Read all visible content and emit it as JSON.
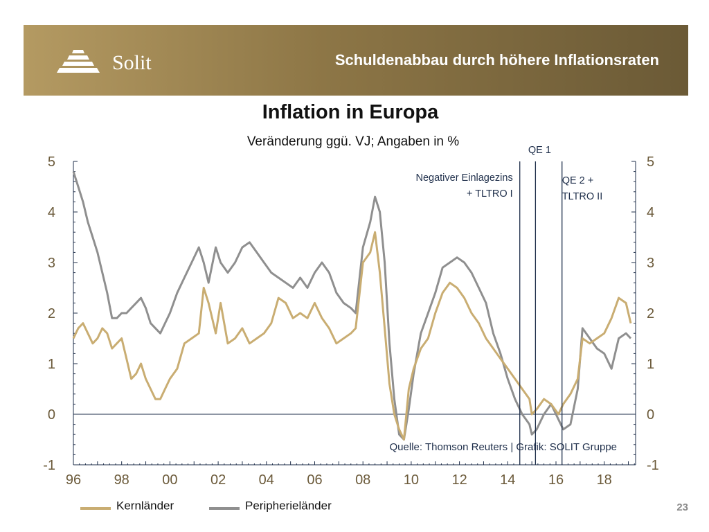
{
  "header": {
    "logo_text": "Solit",
    "title": "Schuldenabbau durch höhere Inflationsraten"
  },
  "page_number": "23",
  "chart_data": {
    "type": "line",
    "title": "Inflation in Europa",
    "subtitle": "Veränderung ggü. VJ; Angaben in %",
    "xlabel": "",
    "ylabel": "",
    "x_ticks": [
      "96",
      "98",
      "00",
      "02",
      "04",
      "06",
      "08",
      "10",
      "12",
      "14",
      "16",
      "18"
    ],
    "x_tick_years": [
      1996,
      1998,
      2000,
      2002,
      2004,
      2006,
      2008,
      2010,
      2012,
      2014,
      2016,
      2018
    ],
    "xlim": [
      1996,
      2019.3
    ],
    "ylim": [
      -1,
      5
    ],
    "y_ticks": [
      "5",
      "4",
      "3",
      "2",
      "1",
      "0",
      "-1"
    ],
    "y_tick_values": [
      5,
      4,
      3,
      2,
      1,
      0,
      -1
    ],
    "zero_line": true,
    "grid": false,
    "legend_position": "bottom-left",
    "colors": {
      "kern": "#c9ad72",
      "peripherie": "#8f8f8f",
      "axis": "#1e2e4a",
      "annotation": "#1e2e4a"
    },
    "series": [
      {
        "name": "Kernländer",
        "x": [
          1996.0,
          1996.2,
          1996.4,
          1996.6,
          1996.8,
          1997.0,
          1997.2,
          1997.4,
          1997.6,
          1997.8,
          1998.0,
          1998.2,
          1998.4,
          1998.6,
          1998.8,
          1999.0,
          1999.2,
          1999.4,
          1999.6,
          1999.8,
          2000.0,
          2000.3,
          2000.6,
          2000.9,
          2001.2,
          2001.4,
          2001.6,
          2001.9,
          2002.1,
          2002.4,
          2002.7,
          2003.0,
          2003.3,
          2003.6,
          2003.9,
          2004.2,
          2004.5,
          2004.8,
          2005.1,
          2005.4,
          2005.7,
          2006.0,
          2006.3,
          2006.6,
          2006.9,
          2007.2,
          2007.5,
          2007.7,
          2008.0,
          2008.3,
          2008.5,
          2008.7,
          2008.9,
          2009.1,
          2009.3,
          2009.5,
          2009.7,
          2009.9,
          2010.1,
          2010.4,
          2010.7,
          2011.0,
          2011.3,
          2011.6,
          2011.9,
          2012.2,
          2012.5,
          2012.8,
          2013.1,
          2013.4,
          2013.7,
          2014.0,
          2014.3,
          2014.6,
          2014.9,
          2015.0,
          2015.2,
          2015.5,
          2015.8,
          2016.1,
          2016.3,
          2016.6,
          2016.9,
          2017.1,
          2017.4,
          2017.7,
          2018.0,
          2018.3,
          2018.6,
          2018.9,
          2019.1
        ],
        "values": [
          1.5,
          1.7,
          1.8,
          1.6,
          1.4,
          1.5,
          1.7,
          1.6,
          1.3,
          1.4,
          1.5,
          1.1,
          0.7,
          0.8,
          1.0,
          0.7,
          0.5,
          0.3,
          0.3,
          0.5,
          0.7,
          0.9,
          1.4,
          1.5,
          1.6,
          2.5,
          2.2,
          1.6,
          2.2,
          1.4,
          1.5,
          1.7,
          1.4,
          1.5,
          1.6,
          1.8,
          2.3,
          2.2,
          1.9,
          2.0,
          1.9,
          2.2,
          1.9,
          1.7,
          1.4,
          1.5,
          1.6,
          1.7,
          3.0,
          3.2,
          3.6,
          2.8,
          1.7,
          0.6,
          0.0,
          -0.3,
          -0.5,
          0.5,
          0.9,
          1.3,
          1.5,
          2.0,
          2.4,
          2.6,
          2.5,
          2.3,
          2.0,
          1.8,
          1.5,
          1.3,
          1.1,
          0.9,
          0.7,
          0.5,
          0.3,
          0.0,
          0.1,
          0.3,
          0.2,
          0.0,
          0.2,
          0.4,
          0.7,
          1.5,
          1.4,
          1.5,
          1.6,
          1.9,
          2.3,
          2.2,
          1.8
        ]
      },
      {
        "name": "Peripherieländer",
        "x": [
          1996.0,
          1996.2,
          1996.4,
          1996.6,
          1996.8,
          1997.0,
          1997.2,
          1997.4,
          1997.6,
          1997.8,
          1998.0,
          1998.2,
          1998.4,
          1998.6,
          1998.8,
          1999.0,
          1999.2,
          1999.4,
          1999.6,
          1999.8,
          2000.0,
          2000.3,
          2000.6,
          2000.9,
          2001.2,
          2001.4,
          2001.6,
          2001.9,
          2002.1,
          2002.4,
          2002.7,
          2003.0,
          2003.3,
          2003.6,
          2003.9,
          2004.2,
          2004.5,
          2004.8,
          2005.1,
          2005.4,
          2005.7,
          2006.0,
          2006.3,
          2006.6,
          2006.9,
          2007.2,
          2007.5,
          2007.7,
          2008.0,
          2008.3,
          2008.5,
          2008.7,
          2008.9,
          2009.1,
          2009.3,
          2009.5,
          2009.7,
          2009.9,
          2010.1,
          2010.4,
          2010.7,
          2011.0,
          2011.3,
          2011.6,
          2011.9,
          2012.2,
          2012.5,
          2012.8,
          2013.1,
          2013.4,
          2013.7,
          2014.0,
          2014.3,
          2014.6,
          2014.9,
          2015.0,
          2015.2,
          2015.5,
          2015.8,
          2016.1,
          2016.3,
          2016.6,
          2016.9,
          2017.1,
          2017.4,
          2017.7,
          2018.0,
          2018.3,
          2018.6,
          2018.9,
          2019.1
        ],
        "values": [
          4.8,
          4.5,
          4.2,
          3.8,
          3.5,
          3.2,
          2.8,
          2.4,
          1.9,
          1.9,
          2.0,
          2.0,
          2.1,
          2.2,
          2.3,
          2.1,
          1.8,
          1.7,
          1.6,
          1.8,
          2.0,
          2.4,
          2.7,
          3.0,
          3.3,
          3.0,
          2.6,
          3.3,
          3.0,
          2.8,
          3.0,
          3.3,
          3.4,
          3.2,
          3.0,
          2.8,
          2.7,
          2.6,
          2.5,
          2.7,
          2.5,
          2.8,
          3.0,
          2.8,
          2.4,
          2.2,
          2.1,
          2.0,
          3.3,
          3.8,
          4.3,
          4.0,
          3.0,
          1.4,
          0.3,
          -0.4,
          -0.5,
          0.1,
          0.8,
          1.6,
          2.0,
          2.4,
          2.9,
          3.0,
          3.1,
          3.0,
          2.8,
          2.5,
          2.2,
          1.6,
          1.2,
          0.7,
          0.3,
          0.0,
          -0.2,
          -0.4,
          -0.3,
          0.0,
          0.2,
          -0.1,
          -0.3,
          -0.2,
          0.5,
          1.7,
          1.5,
          1.3,
          1.2,
          0.9,
          1.5,
          1.6,
          1.5
        ]
      }
    ],
    "vertical_lines": [
      {
        "x": 2014.5,
        "label_lines": [
          "Negativer Einlagezins",
          "+ TLTRO I"
        ],
        "label_side": "left"
      },
      {
        "x": 2015.15,
        "label_lines": [
          "QE 1"
        ],
        "label_side": "top"
      },
      {
        "x": 2016.25,
        "label_lines": [
          "QE 2 +",
          "TLTRO II"
        ],
        "label_side": "right"
      }
    ],
    "source_note": "Quelle: Thomson Reuters | Grafik: SOLIT Gruppe"
  }
}
